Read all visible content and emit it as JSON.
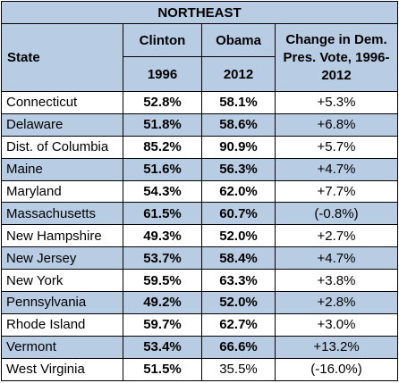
{
  "title": "NORTHEAST",
  "headers": {
    "state": "State",
    "clinton": "Clinton",
    "obama": "Obama",
    "year_clinton": "1996",
    "year_obama": "2012",
    "change": "Change in Dem. Pres. Vote, 1996-2012"
  },
  "rows": [
    {
      "state": "Connecticut",
      "clinton": "52.8%",
      "obama": "58.1%",
      "change": "+5.3%",
      "obama_bold": true
    },
    {
      "state": "Delaware",
      "clinton": "51.8%",
      "obama": "58.6%",
      "change": "+6.8%",
      "obama_bold": true
    },
    {
      "state": "Dist. of Columbia",
      "clinton": "85.2%",
      "obama": "90.9%",
      "change": "+5.7%",
      "obama_bold": true
    },
    {
      "state": "Maine",
      "clinton": "51.6%",
      "obama": "56.3%",
      "change": "+4.7%",
      "obama_bold": true
    },
    {
      "state": "Maryland",
      "clinton": "54.3%",
      "obama": "62.0%",
      "change": "+7.7%",
      "obama_bold": true
    },
    {
      "state": "Massachusetts",
      "clinton": "61.5%",
      "obama": "60.7%",
      "change": "(-0.8%)",
      "obama_bold": true
    },
    {
      "state": "New Hampshire",
      "clinton": "49.3%",
      "obama": "52.0%",
      "change": "+2.7%",
      "obama_bold": true
    },
    {
      "state": "New Jersey",
      "clinton": "53.7%",
      "obama": "58.4%",
      "change": "+4.7%",
      "obama_bold": true
    },
    {
      "state": "New York",
      "clinton": "59.5%",
      "obama": "63.3%",
      "change": "+3.8%",
      "obama_bold": true
    },
    {
      "state": "Pennsylvania",
      "clinton": "49.2%",
      "obama": "52.0%",
      "change": "+2.8%",
      "obama_bold": true
    },
    {
      "state": "Rhode Island",
      "clinton": "59.7%",
      "obama": "62.7%",
      "change": "+3.0%",
      "obama_bold": true
    },
    {
      "state": "Vermont",
      "clinton": "53.4%",
      "obama": "66.6%",
      "change": "+13.2%",
      "obama_bold": true
    },
    {
      "state": "West Virginia",
      "clinton": "51.5%",
      "obama": "35.5%",
      "change": "(-16.0%)",
      "obama_bold": false
    }
  ],
  "colors": {
    "header_fill": "#b8cce4",
    "alt_row_fill": "#b8cce4",
    "row_fill": "#ffffff",
    "border": "#000000"
  }
}
